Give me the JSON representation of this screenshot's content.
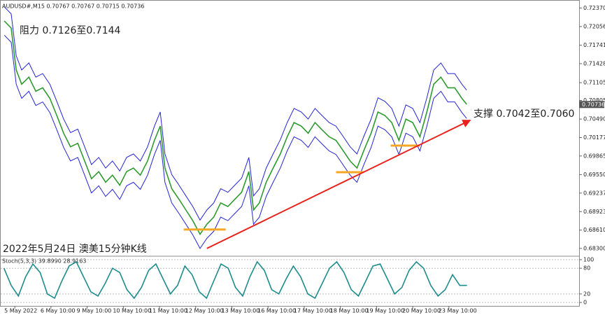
{
  "chart_data": [
    {
      "type": "line",
      "title": "AUDUSD#,M15  0.70767 0.70767 0.70715 0.70736",
      "xlim": [
        -0.39,
        15.6
      ],
      "ylim": [
        0.6818,
        0.7247
      ],
      "xticks": [
        {
          "value": 0,
          "label": "5 May 2022"
        },
        {
          "value": 1,
          "label": "6 May 10:00"
        },
        {
          "value": 2,
          "label": "9 May 10:00"
        },
        {
          "value": 3,
          "label": "10 May 10:00"
        },
        {
          "value": 4,
          "label": "11 May 10:00"
        },
        {
          "value": 5,
          "label": "12 May 10:00"
        },
        {
          "value": 6,
          "label": "13 May 10:00"
        },
        {
          "value": 7,
          "label": "16 May 10:00"
        },
        {
          "value": 8,
          "label": "17 May 10:00"
        },
        {
          "value": 9,
          "label": "18 May 10:00"
        },
        {
          "value": 10,
          "label": "19 May 10:00"
        },
        {
          "value": 11,
          "label": "20 May 10:00"
        },
        {
          "value": 12,
          "label": "23 May 10:00"
        }
      ],
      "yticks": [
        {
          "value": 0.7237,
          "label": "0.72370"
        },
        0.72056,
        0.71741,
        0.71428,
        0.71105,
        0.70805,
        {
          "value": 0.7049,
          "label": "0.70490"
        },
        0.70177,
        0.69865,
        {
          "value": 0.6955,
          "label": "0.69550"
        },
        0.69237,
        0.68923,
        {
          "value": 0.6861,
          "label": "0.68610"
        },
        {
          "value": 0.683,
          "label": "0.68300"
        }
      ],
      "x": [
        -0.29,
        -0.1,
        0.04,
        0.19,
        0.39,
        0.58,
        0.77,
        0.97,
        1.16,
        1.35,
        1.54,
        1.74,
        1.93,
        2.12,
        2.32,
        2.51,
        2.7,
        2.9,
        3.09,
        3.28,
        3.47,
        3.67,
        3.86,
        4.02,
        4.15,
        4.34,
        4.54,
        4.73,
        4.92,
        5.12,
        5.31,
        5.5,
        5.69,
        5.89,
        6.08,
        6.27,
        6.47,
        6.6,
        6.76,
        6.95,
        7.14,
        7.34,
        7.53,
        7.72,
        7.92,
        8.11,
        8.3,
        8.49,
        8.69,
        8.88,
        9.07,
        9.27,
        9.46,
        9.65,
        9.85,
        10.04,
        10.23,
        10.42,
        10.62,
        10.81,
        11.0,
        11.2,
        11.39,
        11.58,
        11.78,
        11.97,
        12.16,
        12.36,
        12.49
      ],
      "series": [
        {
          "color": "#2e9a2e",
          "values": [
            0.7215,
            0.7203,
            0.7132,
            0.7108,
            0.712,
            0.7096,
            0.7102,
            0.7084,
            0.7055,
            0.7025,
            0.7002,
            0.7008,
            0.6978,
            0.6948,
            0.696,
            0.6942,
            0.6954,
            0.6937,
            0.696,
            0.6966,
            0.6954,
            0.6978,
            0.7013,
            0.7037,
            0.6966,
            0.6931,
            0.6913,
            0.6895,
            0.6877,
            0.6854,
            0.6871,
            0.6883,
            0.6907,
            0.6901,
            0.6913,
            0.6925,
            0.696,
            0.6895,
            0.6907,
            0.6942,
            0.6966,
            0.699,
            0.7019,
            0.7043,
            0.7037,
            0.7025,
            0.7043,
            0.7031,
            0.7019,
            0.7013,
            0.6996,
            0.6978,
            0.6966,
            0.6996,
            0.7025,
            0.7061,
            0.7055,
            0.7043,
            0.7013,
            0.7049,
            0.7043,
            0.7019,
            0.7061,
            0.7108,
            0.712,
            0.7102,
            0.7102,
            0.7084,
            0.7074
          ]
        },
        {
          "color": "#2323d8",
          "values": [
            0.7239,
            0.7227,
            0.7156,
            0.7132,
            0.7144,
            0.712,
            0.7126,
            0.7108,
            0.7079,
            0.7049,
            0.7026,
            0.7032,
            0.7002,
            0.6972,
            0.6984,
            0.6966,
            0.6978,
            0.6961,
            0.6984,
            0.699,
            0.6978,
            0.7002,
            0.7037,
            0.7061,
            0.699,
            0.6955,
            0.6937,
            0.6919,
            0.6901,
            0.6878,
            0.6895,
            0.6907,
            0.6931,
            0.6925,
            0.6937,
            0.6949,
            0.6984,
            0.6919,
            0.6931,
            0.6966,
            0.699,
            0.7014,
            0.7043,
            0.7067,
            0.7061,
            0.7049,
            0.7067,
            0.7055,
            0.7043,
            0.7037,
            0.702,
            0.7002,
            0.699,
            0.702,
            0.7049,
            0.7085,
            0.7079,
            0.7067,
            0.7037,
            0.7073,
            0.7067,
            0.7043,
            0.7085,
            0.7132,
            0.7144,
            0.7126,
            0.7126,
            0.7108,
            0.7098
          ]
        },
        {
          "color": "#2323d8",
          "values": [
            0.7191,
            0.7179,
            0.7108,
            0.7084,
            0.7096,
            0.7072,
            0.7078,
            0.706,
            0.7031,
            0.7001,
            0.6978,
            0.6984,
            0.6954,
            0.6924,
            0.6936,
            0.6918,
            0.693,
            0.6913,
            0.6936,
            0.6942,
            0.693,
            0.6954,
            0.6989,
            0.7013,
            0.6942,
            0.6907,
            0.6889,
            0.6871,
            0.6853,
            0.683,
            0.6847,
            0.6859,
            0.6883,
            0.6877,
            0.6889,
            0.6901,
            0.6936,
            0.6871,
            0.6883,
            0.6918,
            0.6942,
            0.6966,
            0.6995,
            0.7019,
            0.7013,
            0.7001,
            0.7019,
            0.7007,
            0.6995,
            0.6989,
            0.6972,
            0.6954,
            0.6942,
            0.6972,
            0.7001,
            0.7037,
            0.7031,
            0.7019,
            0.6989,
            0.7025,
            0.7019,
            0.6995,
            0.7037,
            0.7084,
            0.7096,
            0.7078,
            0.7078,
            0.706,
            0.705
          ]
        }
      ],
      "trendline": {
        "color": "#e8221b",
        "x": [
          5.31,
          12.59
        ],
        "y": [
          0.683,
          0.7047
        ]
      },
      "levels": [
        {
          "color": "#f5a623",
          "x": [
            4.67,
            5.83
          ],
          "y": 0.6862
        },
        {
          "color": "#f5a623",
          "x": [
            8.88,
            9.65
          ],
          "y": 0.6959
        },
        {
          "color": "#f5a623",
          "x": [
            10.39,
            11.2
          ],
          "y": 0.7004
        }
      ],
      "last_price": 0.70736,
      "annotations": [
        "阻力 0.7126至0.7144",
        "支撑 0.7042至0.7060",
        "2022年5月24日 澳美15分钟K线"
      ]
    },
    {
      "type": "line",
      "title": "Stoch(5,3,3) 39.8990 28.9163",
      "xlim": [
        -0.39,
        15.6
      ],
      "ylim": [
        -8,
        106.5
      ],
      "yticks": [
        100,
        80,
        20,
        0
      ],
      "grid": true,
      "x": [
        -0.3,
        -0.1,
        0.1,
        0.3,
        0.5,
        0.7,
        0.9,
        1.1,
        1.3,
        1.5,
        1.7,
        1.9,
        2.1,
        2.3,
        2.5,
        2.7,
        2.9,
        3.1,
        3.3,
        3.5,
        3.7,
        3.9,
        4.1,
        4.3,
        4.5,
        4.7,
        4.9,
        5.1,
        5.3,
        5.5,
        5.7,
        5.9,
        6.1,
        6.3,
        6.5,
        6.7,
        6.9,
        7.1,
        7.3,
        7.5,
        7.7,
        7.9,
        8.1,
        8.3,
        8.5,
        8.7,
        8.9,
        9.1,
        9.3,
        9.5,
        9.7,
        9.9,
        10.1,
        10.3,
        10.5,
        10.7,
        10.9,
        11.1,
        11.3,
        11.5,
        11.7,
        11.9,
        12.1,
        12.3,
        12.5
      ],
      "series": [
        {
          "color": "#1e8c8c",
          "values": [
            80,
            40,
            15,
            60,
            90,
            70,
            20,
            10,
            50,
            85,
            95,
            60,
            25,
            15,
            45,
            80,
            70,
            30,
            10,
            35,
            75,
            90,
            55,
            20,
            40,
            85,
            65,
            25,
            10,
            50,
            90,
            80,
            35,
            15,
            60,
            95,
            75,
            30,
            20,
            55,
            85,
            60,
            20,
            10,
            45,
            80,
            95,
            70,
            30,
            15,
            50,
            85,
            90,
            55,
            20,
            35,
            75,
            95,
            80,
            40,
            15,
            30,
            65,
            40,
            39.899
          ]
        }
      ]
    }
  ]
}
